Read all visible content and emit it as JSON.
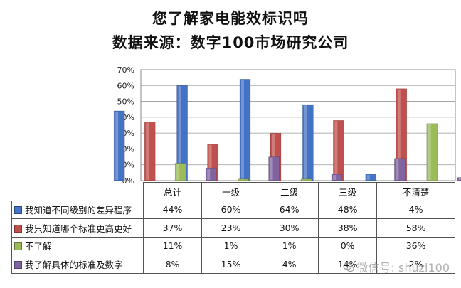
{
  "title": "您了解家电能效标识吗",
  "subtitle": "数据来源：数字100市场研究公司",
  "watermark": "微信号: shuzi100",
  "chart_data": {
    "type": "bar",
    "categories": [
      "总计",
      "一级",
      "二级",
      "三级",
      "不清楚"
    ],
    "y_ticks": [
      "0%",
      "10%",
      "20%",
      "30%",
      "40%",
      "50%",
      "60%",
      "70%"
    ],
    "ylim": [
      0,
      70
    ],
    "grid": true,
    "legend": "table-below",
    "series": [
      {
        "name": "我知道不同级别的差异程序",
        "values": [
          44,
          60,
          64,
          48,
          4
        ],
        "labels": [
          "44%",
          "60%",
          "64%",
          "48%",
          "4%"
        ],
        "color": "#4472C4"
      },
      {
        "name": "我只知道哪个标准更高更好",
        "values": [
          37,
          23,
          30,
          38,
          58
        ],
        "labels": [
          "37%",
          "23%",
          "30%",
          "38%",
          "58%"
        ],
        "color": "#C0504D"
      },
      {
        "name": "不了解",
        "values": [
          11,
          1,
          1,
          0,
          36
        ],
        "labels": [
          "11%",
          "1%",
          "1%",
          "0%",
          "36%"
        ],
        "color": "#9BBB59"
      },
      {
        "name": "我了解具体的标准及数字",
        "values": [
          8,
          15,
          4,
          14,
          2
        ],
        "labels": [
          "8%",
          "15%",
          "4%",
          "14%",
          "2%"
        ],
        "color": "#8064A2"
      }
    ]
  }
}
